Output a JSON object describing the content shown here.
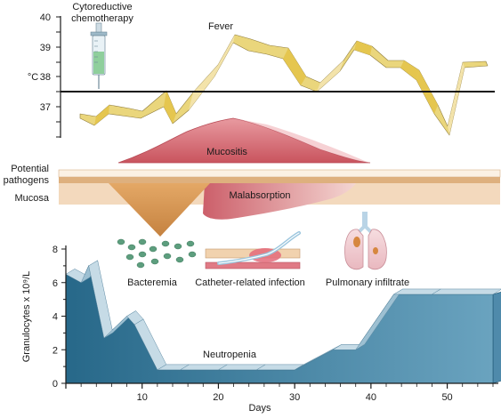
{
  "fever_panel": {
    "title": "Fever",
    "unit": "°C",
    "ticks": [
      "37",
      "38",
      "39",
      "40"
    ],
    "drug_label": [
      "Cytoreductive",
      "chemotherapy"
    ],
    "threshold_c": 37.5
  },
  "mucosa_panel": {
    "mucositis": "Mucositis",
    "malabsorption": "Malabsorption",
    "pathogens": [
      "Potential",
      "pathogens"
    ],
    "mucosa": "Mucosa"
  },
  "complications": {
    "bacteremia": "Bacteremia",
    "catheter": "Catheter-related infection",
    "pulmonary": "Pulmonary infiltrate"
  },
  "chart_data": {
    "type": "area",
    "title": "",
    "xlabel": "Days",
    "ylabel": "Granulocytes x 10⁹/L",
    "annotation": "Neutropenia",
    "xlim": [
      0,
      56
    ],
    "ylim": [
      0,
      8
    ],
    "xticks": [
      "10",
      "20",
      "30",
      "40",
      "50"
    ],
    "yticks": [
      "0",
      "2",
      "4",
      "6",
      "8"
    ],
    "x": [
      0,
      2,
      3,
      5,
      8,
      9,
      12,
      15,
      20,
      25,
      30,
      35,
      38,
      43,
      48,
      56
    ],
    "y": [
      6.5,
      6,
      7,
      2.7,
      4,
      3.5,
      0.8,
      0.8,
      0.8,
      0.8,
      0.8,
      2,
      2,
      5.3,
      5.3,
      5.3
    ]
  },
  "colors": {
    "neutropenia": "#2f7196",
    "fever_band": "#e8c85a",
    "mucositis": "#d9737d",
    "mucosa": "#f2d8bc",
    "arrow": "#d99a52"
  }
}
